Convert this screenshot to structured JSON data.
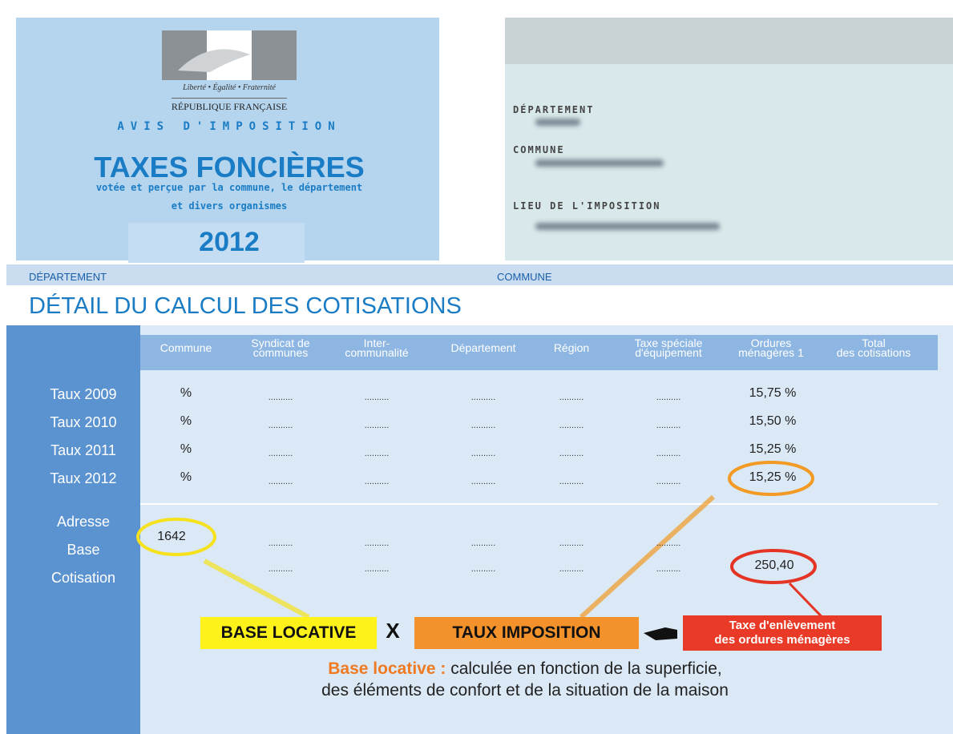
{
  "header": {
    "motto": "Liberté • Égalité • Fraternité",
    "republic": "RÉPUBLIQUE FRANÇAISE",
    "notice": "AVIS D'IMPOSITION",
    "title": "TAXES FONCIÈRES",
    "subtitle_1": "votée et perçue par la commune, le département",
    "subtitle_2": "et divers organismes",
    "year": "2012"
  },
  "fields": [
    "DÉPARTEMENT",
    "COMMUNE",
    "LIEU DE L'IMPOSITION"
  ],
  "band": [
    "DÉPARTEMENT",
    "COMMUNE"
  ],
  "table": {
    "title": "DÉTAIL DU CALCUL DES COTISATIONS",
    "columns": [
      [
        "Commune"
      ],
      [
        "Syndicat de",
        "communes"
      ],
      [
        "Inter-",
        "communalité"
      ],
      [
        "Département"
      ],
      [
        "Région"
      ],
      [
        "Taxe spéciale",
        "d'équipement"
      ],
      [
        "Ordures",
        "ménagères 1"
      ],
      [
        "Total",
        "des cotisations"
      ]
    ],
    "rates": [
      {
        "label": "Taux 2009",
        "cells": [
          "%",
          "..........",
          "..........",
          "..........",
          "..........",
          "..........",
          "15,75 %"
        ]
      },
      {
        "label": "Taux 2010",
        "cells": [
          "%",
          "..........",
          "..........",
          "..........",
          "..........",
          "..........",
          "15,50 %"
        ]
      },
      {
        "label": "Taux 2011",
        "cells": [
          "%",
          "..........",
          "..........",
          "..........",
          "..........",
          "..........",
          "15,25 %"
        ]
      },
      {
        "label": "Taux 2012",
        "cells": [
          "%",
          "..........",
          "..........",
          "..........",
          "..........",
          "..........",
          "15,25 %"
        ]
      }
    ],
    "lower_labels": [
      "Adresse",
      "Base",
      "Cotisation"
    ],
    "base": [
      "1642",
      "..........",
      "..........",
      "..........",
      "..........",
      ".........."
    ],
    "cotisation": [
      "..........",
      "..........",
      "..........",
      "..........",
      "..........",
      "250,40"
    ]
  },
  "formula": [
    "BASE LOCATIVE",
    "X",
    "TAUX IMPOSITION",
    "Taxe d'enlèvement",
    "des ordures ménagères"
  ],
  "note": {
    "term": "Base locative :",
    "line_1": "calculée en fonction de la superficie,",
    "line_2": "des éléments de confort et de la situation de la maison"
  }
}
